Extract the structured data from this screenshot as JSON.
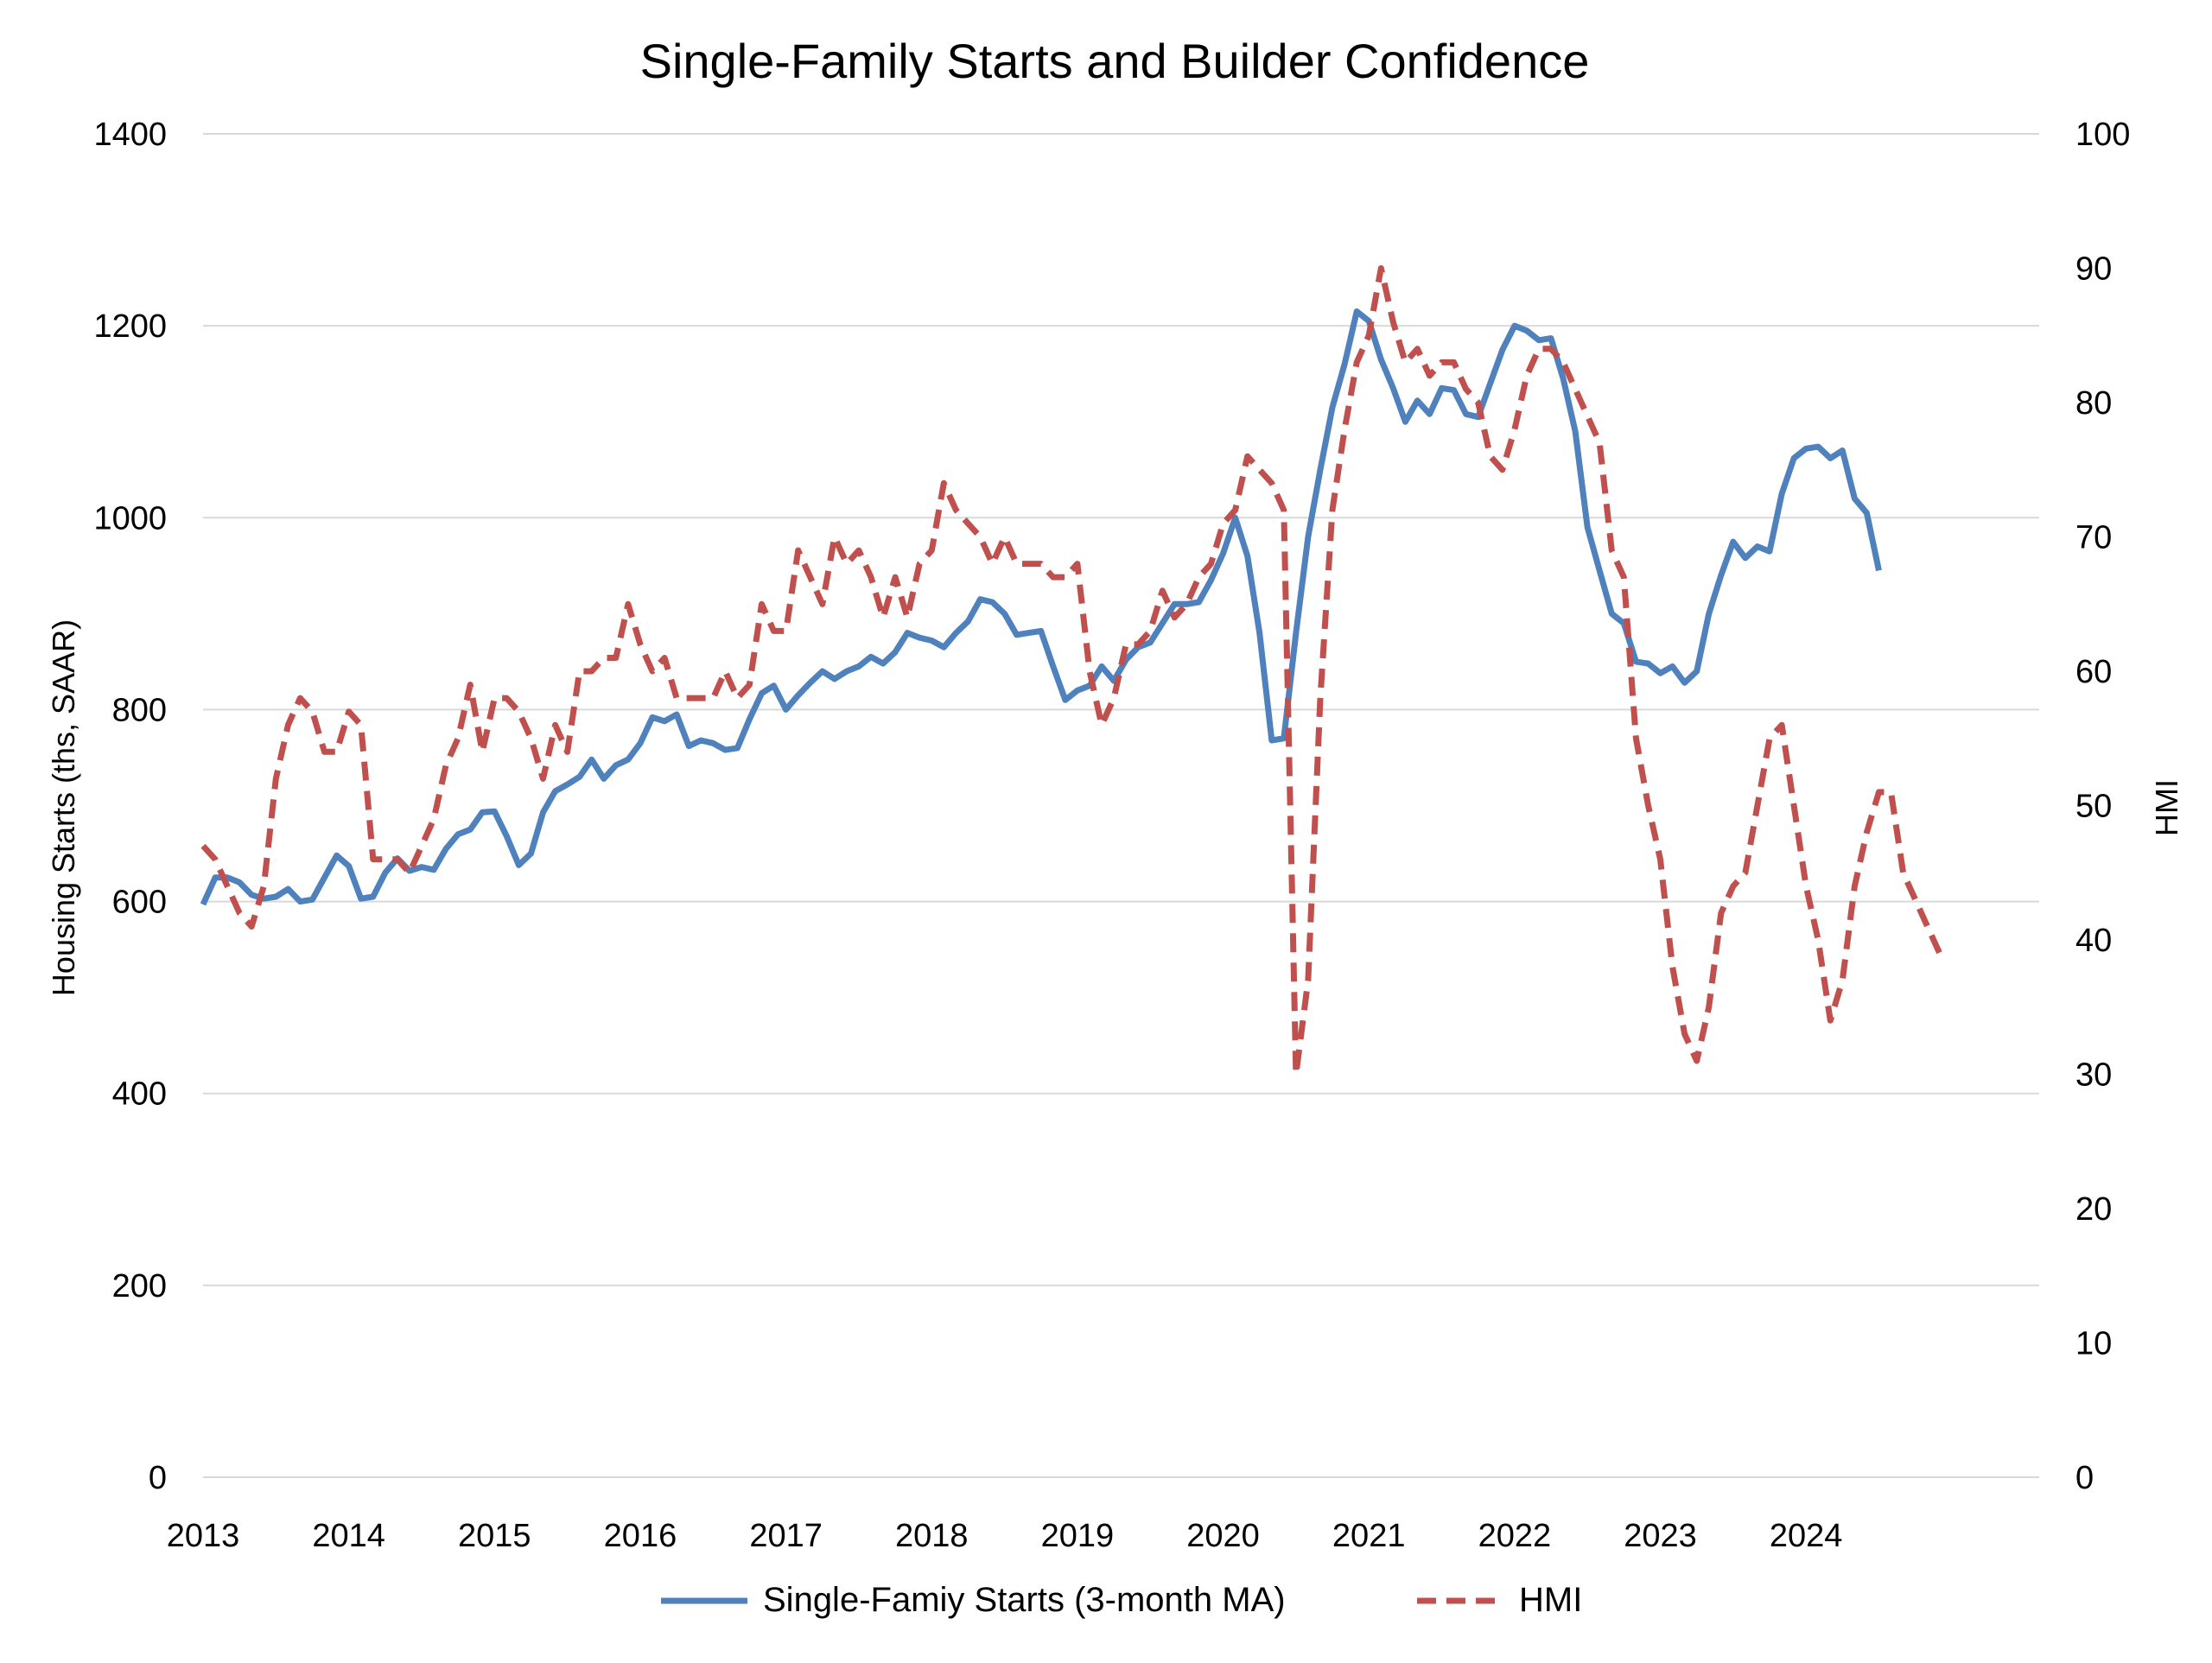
{
  "chart_data": {
    "type": "line",
    "title": "Single-Family Starts and Builder Confidence",
    "ylabel": "Housing Starts (ths, SAAR)",
    "y2label": "HMI",
    "ylim": [
      0,
      1400
    ],
    "y2lim": [
      0,
      100
    ],
    "yticks": [
      "0",
      "200",
      "400",
      "600",
      "800",
      "1000",
      "1200",
      "1400"
    ],
    "y2ticks": [
      "0",
      "10",
      "20",
      "30",
      "40",
      "50",
      "60",
      "70",
      "80",
      "90",
      "100"
    ],
    "xticks": [
      "2013",
      "2014",
      "2015",
      "2016",
      "2017",
      "2018",
      "2019",
      "2020",
      "2021",
      "2022",
      "2023",
      "2024"
    ],
    "x_start": "2013-01",
    "x_frequency": "monthly",
    "grid": true,
    "legend_position": "bottom",
    "series": [
      {
        "name": "Single-Famiy Starts (3-month MA)",
        "axis": "left",
        "color": "#4f81bd",
        "dash": "solid",
        "values": [
          597,
          625,
          625,
          620,
          607,
          603,
          605,
          613,
          600,
          602,
          625,
          648,
          637,
          603,
          605,
          630,
          645,
          632,
          636,
          633,
          655,
          670,
          675,
          693,
          694,
          668,
          638,
          650,
          693,
          715,
          722,
          730,
          748,
          728,
          742,
          748,
          765,
          792,
          788,
          795,
          762,
          768,
          765,
          758,
          760,
          790,
          817,
          825,
          800,
          815,
          828,
          840,
          832,
          840,
          845,
          855,
          848,
          860,
          880,
          875,
          872,
          865,
          880,
          892,
          915,
          912,
          900,
          878,
          880,
          882,
          845,
          810,
          820,
          825,
          845,
          830,
          852,
          865,
          870,
          890,
          910,
          910,
          912,
          935,
          963,
          1000,
          960,
          880,
          768,
          770,
          880,
          980,
          1050,
          1115,
          1160,
          1215,
          1205,
          1165,
          1135,
          1100,
          1122,
          1108,
          1135,
          1133,
          1108,
          1105,
          1140,
          1175,
          1200,
          1195,
          1185,
          1187,
          1145,
          1090,
          990,
          945,
          900,
          890,
          850,
          848,
          838,
          845,
          828,
          840,
          900,
          940,
          975,
          958,
          970,
          965,
          1025,
          1062,
          1072,
          1074,
          1062,
          1070,
          1020,
          1005,
          945
        ]
      },
      {
        "name": "HMI",
        "axis": "right",
        "color": "#c0504d",
        "dash": "dashed",
        "values": [
          47,
          46,
          44,
          42,
          41,
          44,
          52,
          56,
          58,
          57,
          54,
          54,
          57,
          56,
          46,
          46,
          46,
          45,
          47,
          49,
          53,
          55,
          59,
          54,
          58,
          58,
          57,
          55,
          52,
          56,
          54,
          60,
          60,
          61,
          61,
          65,
          62,
          60,
          61,
          58,
          58,
          58,
          58,
          60,
          58,
          59,
          65,
          63,
          63,
          69,
          67,
          65,
          70,
          68,
          69,
          67,
          64,
          67,
          64,
          68,
          69,
          74,
          72,
          71,
          70,
          68,
          70,
          68,
          68,
          68,
          67,
          67,
          68,
          60,
          56,
          58,
          62,
          62,
          63,
          66,
          64,
          65,
          67,
          68,
          71,
          72,
          76,
          75,
          74,
          72,
          30,
          37,
          58,
          72,
          78,
          83,
          85,
          90,
          86,
          83,
          84,
          82,
          83,
          83,
          81,
          80,
          76,
          75,
          78,
          82,
          84,
          84,
          83,
          81,
          79,
          77,
          69,
          67,
          55,
          50,
          46,
          38,
          33,
          31,
          35,
          42,
          44,
          45,
          50,
          55,
          56,
          50,
          44,
          40,
          34,
          37,
          44,
          48,
          51,
          51,
          45,
          43,
          41,
          39
        ]
      }
    ]
  }
}
